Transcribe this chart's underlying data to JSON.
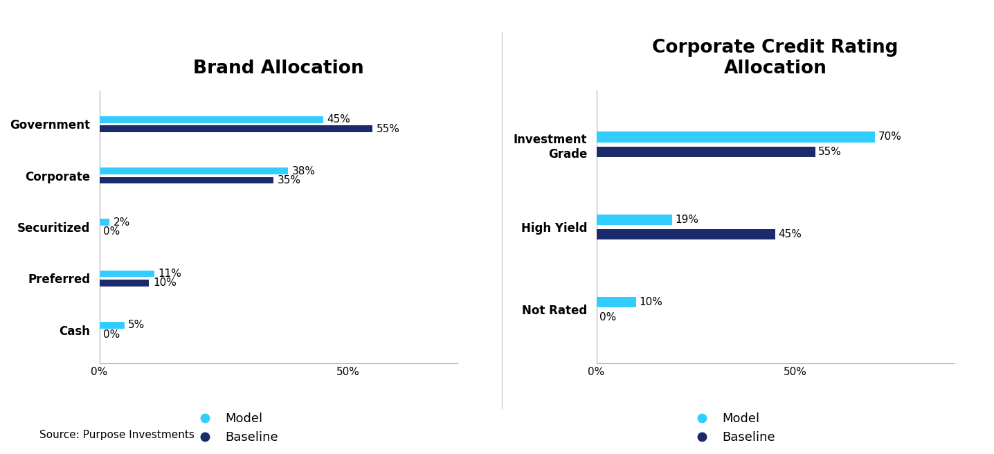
{
  "chart1": {
    "title": "Brand Allocation",
    "categories": [
      "Government",
      "Corporate",
      "Securitized",
      "Preferred",
      "Cash"
    ],
    "model_values": [
      45,
      38,
      2,
      11,
      5
    ],
    "baseline_values": [
      55,
      35,
      0,
      10,
      0
    ],
    "xlim": [
      0,
      72
    ],
    "xticks": [
      0,
      50
    ],
    "xtick_labels": [
      "0%",
      "50%"
    ]
  },
  "chart2": {
    "title": "Corporate Credit Rating\nAllocation",
    "categories": [
      "Investment\nGrade",
      "High Yield",
      "Not Rated"
    ],
    "model_values": [
      70,
      19,
      10
    ],
    "baseline_values": [
      55,
      45,
      0
    ],
    "xlim": [
      0,
      90
    ],
    "xticks": [
      0,
      50
    ],
    "xtick_labels": [
      "0%",
      "50%"
    ]
  },
  "color_model": "#33CCFF",
  "color_baseline": "#1B2A6B",
  "bar_height": 0.13,
  "bar_gap": 0.05,
  "source_text": "Source: Purpose Investments",
  "legend_model": "Model",
  "legend_baseline": "Baseline",
  "background_color": "#FFFFFF",
  "title_fontsize": 19,
  "label_fontsize": 12,
  "tick_fontsize": 11,
  "annot_fontsize": 11,
  "source_fontsize": 11
}
